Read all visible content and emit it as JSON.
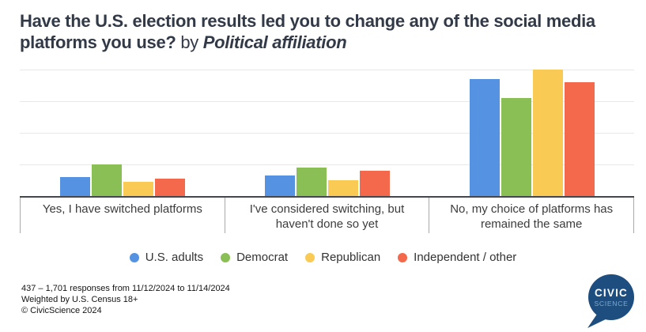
{
  "title": {
    "question": "Have the U.S. election results led you to change any of the social media platforms you use?",
    "connector": "by",
    "emphasis": "Political affiliation"
  },
  "chart_data": {
    "type": "bar",
    "categories": [
      "Yes, I have switched platforms",
      "I've considered switching, but haven't done so yet",
      "No, my choice of platforms has remained the same"
    ],
    "series": [
      {
        "name": "U.S. adults",
        "color": "#5592E2",
        "values": [
          12,
          13,
          74
        ]
      },
      {
        "name": "Democrat",
        "color": "#8ABF56",
        "values": [
          20,
          18,
          62
        ]
      },
      {
        "name": "Republican",
        "color": "#F9CB55",
        "values": [
          9,
          10,
          80
        ]
      },
      {
        "name": "Independent / other",
        "color": "#F4694C",
        "values": [
          11,
          16,
          72
        ]
      }
    ],
    "value_unit": "percent",
    "ylim": [
      0,
      80
    ],
    "gridline_interval": 20,
    "grid": true,
    "y_tick_labels_shown": false,
    "legend_position": "bottom",
    "xlabel": "",
    "ylabel": ""
  },
  "footer": {
    "line1": "437 – 1,701 responses from 11/12/2024 to 11/14/2024",
    "line2": "Weighted by U.S. Census 18+",
    "line3": "© CivicScience 2024"
  },
  "logo": {
    "line1": "CIVIC",
    "line2": "SCIENCE",
    "bg_color": "#1D4E7F",
    "accent_color": "#7FA9CE",
    "text_color": "#ffffff"
  }
}
